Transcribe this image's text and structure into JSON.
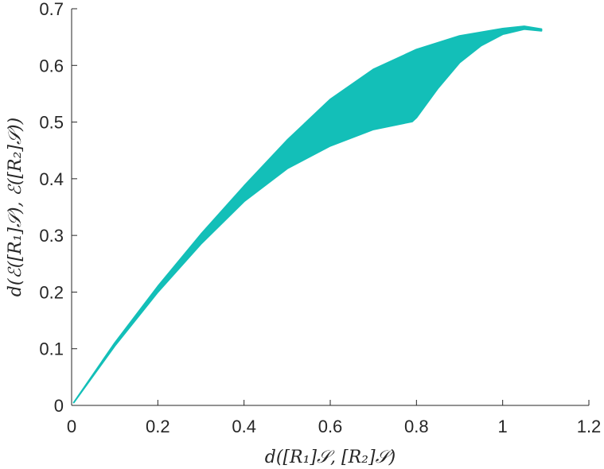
{
  "chart_data": {
    "type": "area",
    "title": "",
    "xlabel": "d([R₁]𝒮, [R₂]𝒮)",
    "ylabel": "d(ℰ([R₁]𝒮), ℰ([R₂]𝒮))",
    "xlim": [
      0,
      1.2
    ],
    "ylim": [
      0,
      0.7
    ],
    "xticks": [
      0,
      0.2,
      0.4,
      0.6,
      0.8,
      1,
      1.2
    ],
    "xtick_labels": [
      "0",
      "0.2",
      "0.4",
      "0.6",
      "0.8",
      "1",
      "1.2"
    ],
    "yticks": [
      0,
      0.1,
      0.2,
      0.3,
      0.4,
      0.5,
      0.6,
      0.7
    ],
    "ytick_labels": [
      "0",
      "0.1",
      "0.2",
      "0.3",
      "0.4",
      "0.5",
      "0.6",
      "0.7"
    ],
    "grid": false,
    "fill_color": "#13bfb8",
    "upper_boundary": {
      "x": [
        0.005,
        0.1,
        0.2,
        0.3,
        0.4,
        0.5,
        0.6,
        0.7,
        0.8,
        0.9,
        1.0,
        1.05,
        1.09
      ],
      "y": [
        0.005,
        0.11,
        0.21,
        0.302,
        0.387,
        0.468,
        0.54,
        0.593,
        0.628,
        0.652,
        0.665,
        0.669,
        0.664
      ]
    },
    "lower_boundary": {
      "x": [
        0.005,
        0.1,
        0.2,
        0.3,
        0.4,
        0.5,
        0.6,
        0.7,
        0.79,
        0.8,
        0.85,
        0.9,
        0.95,
        1.0,
        1.05,
        1.09
      ],
      "y": [
        0.005,
        0.105,
        0.2,
        0.285,
        0.36,
        0.418,
        0.458,
        0.487,
        0.501,
        0.508,
        0.56,
        0.605,
        0.635,
        0.655,
        0.664,
        0.661
      ]
    }
  }
}
